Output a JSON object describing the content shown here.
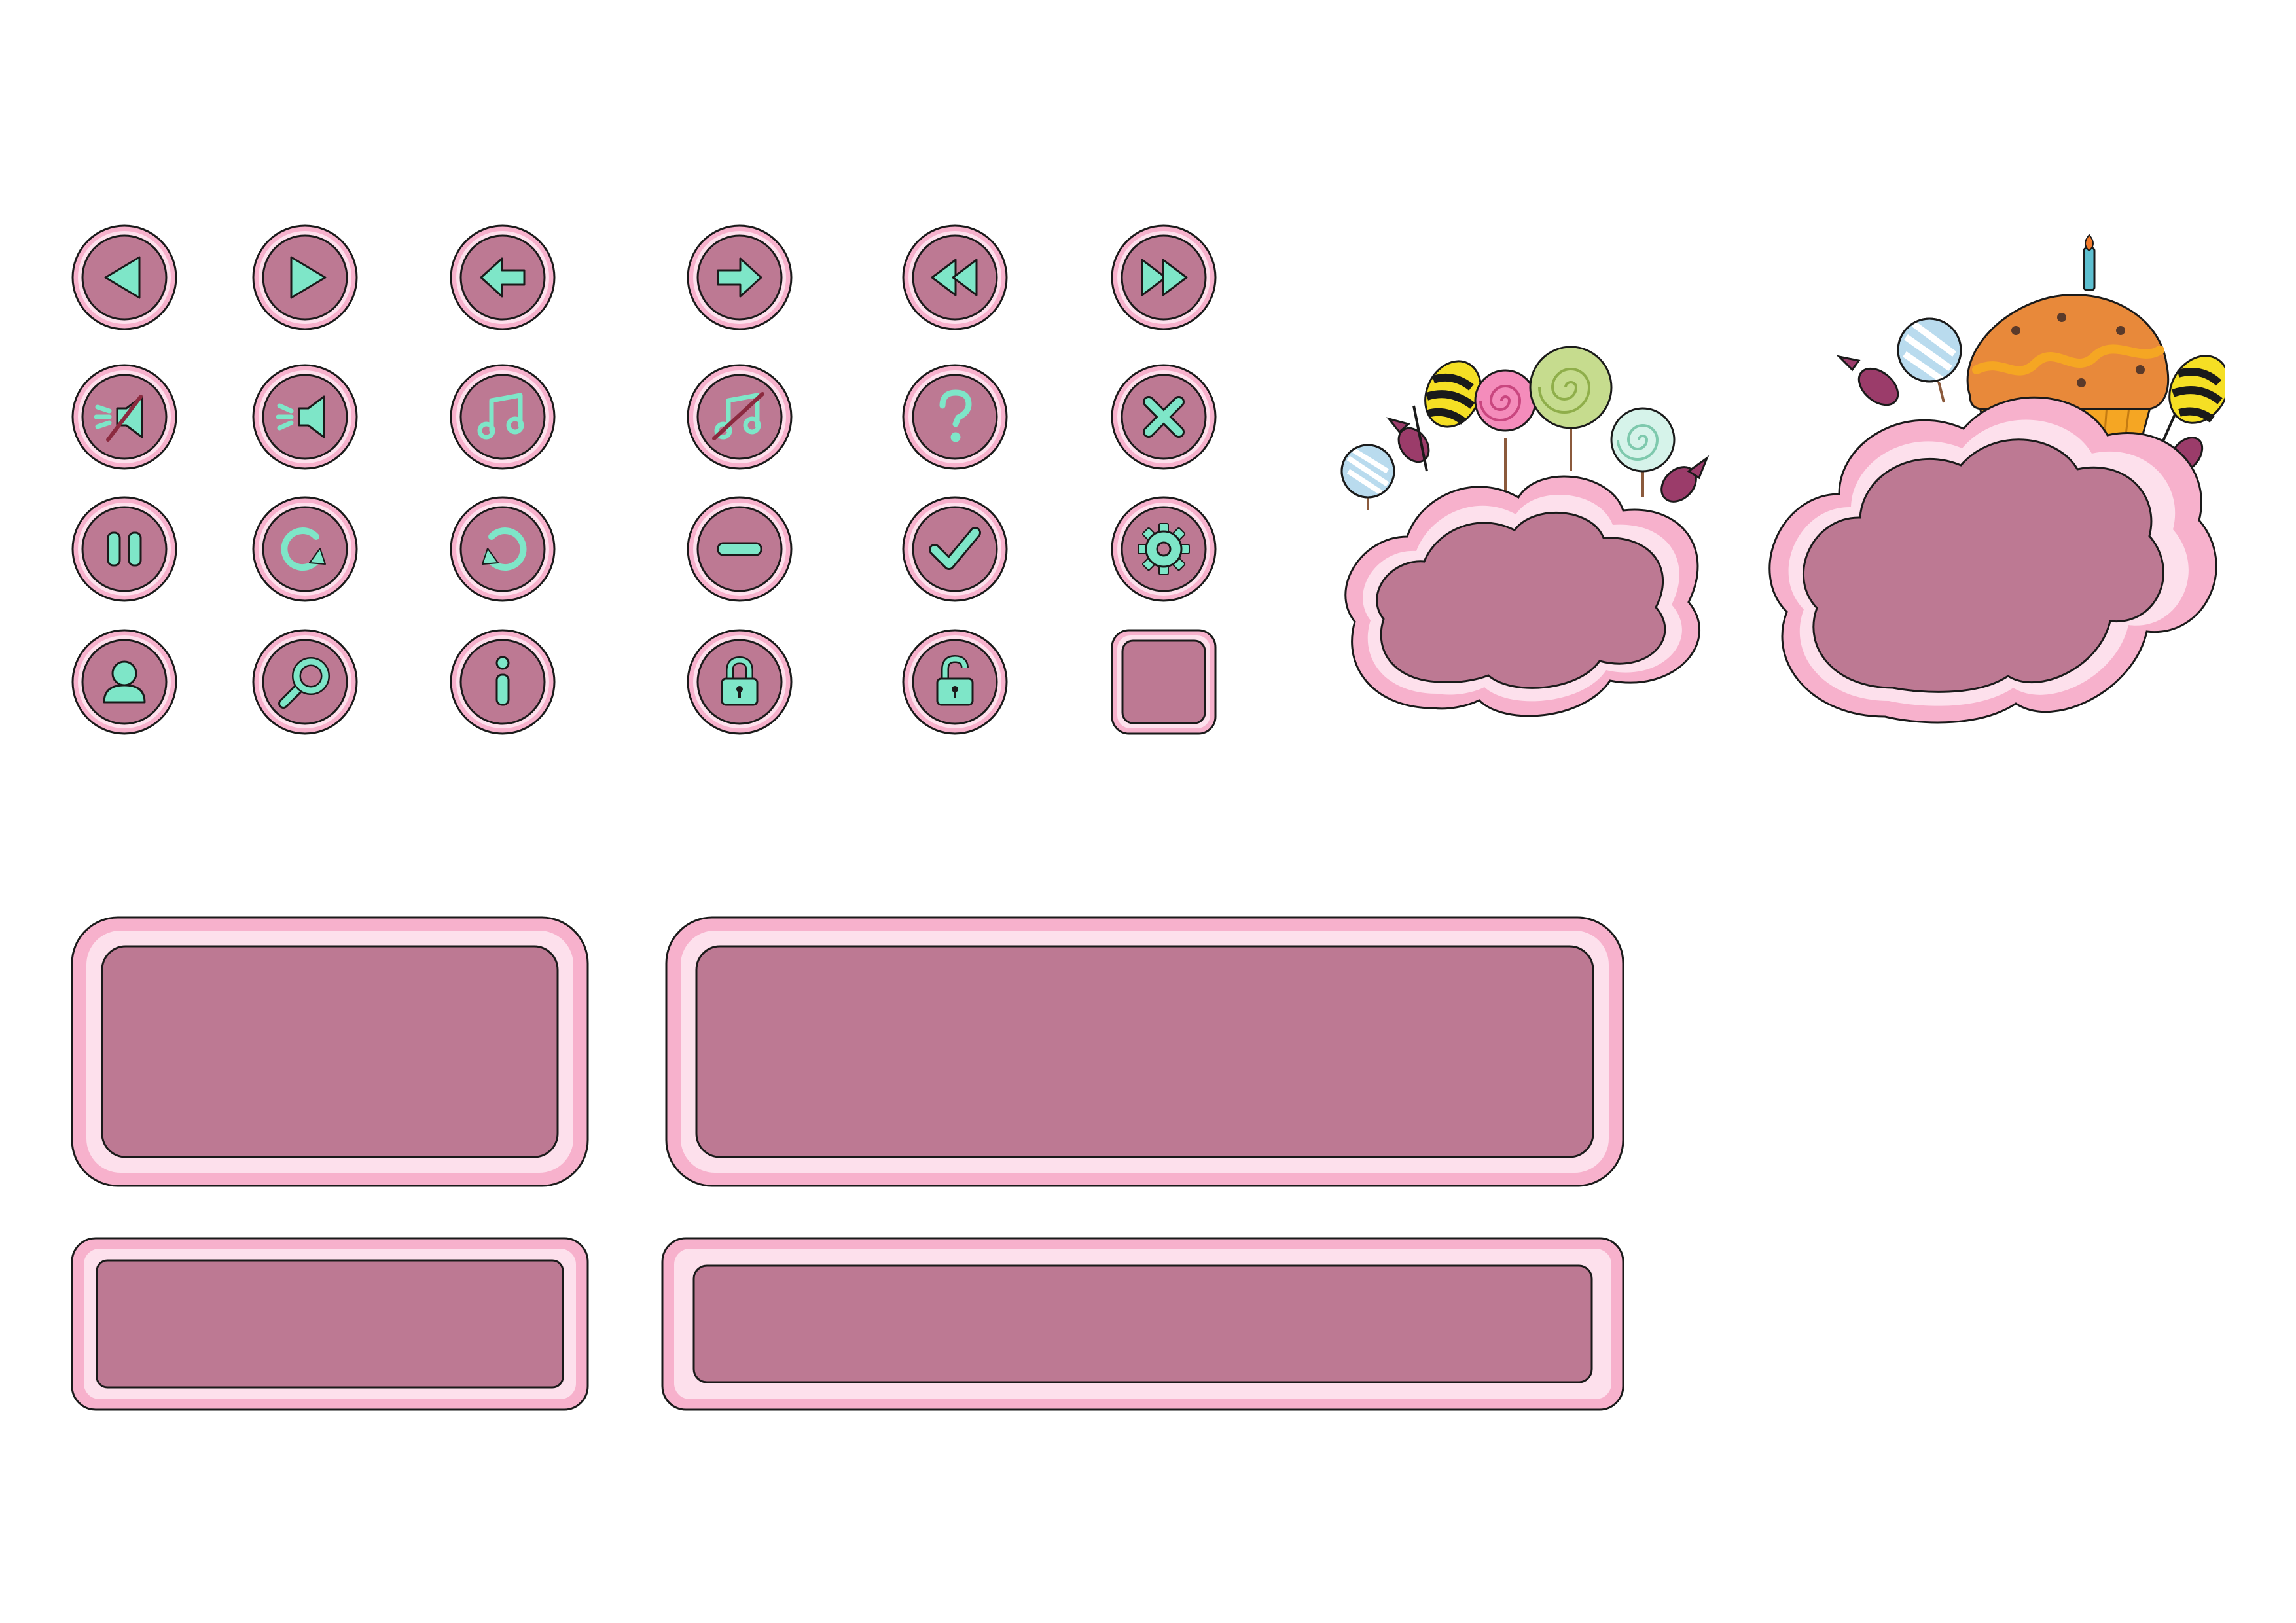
{
  "kit": {
    "theme": "candy",
    "colors": {
      "outline": "#1a1a1a",
      "rim_outer": "#f7b1cc",
      "rim_inner": "#fde0ec",
      "face": "#bd7993",
      "icon": "#7ee6c8",
      "mute_slash": "#8b2a3f",
      "lolly_pink": "#f48cbb",
      "lolly_green": "#c6dc8e",
      "lolly_mint": "#d6f3ea",
      "lolly_blue": "#b9dbee",
      "bee_yellow": "#f5df24",
      "wrapper": "#9b3c6a",
      "cupcake_wrapper": "#f5a623",
      "cupcake_top": "#e8893a",
      "candle": "#5dbfd0",
      "flame": "#f27b2c"
    }
  },
  "buttons": [
    {
      "id": "prev",
      "icon": "triangle-left-icon"
    },
    {
      "id": "play",
      "icon": "triangle-right-icon"
    },
    {
      "id": "back",
      "icon": "arrow-left-icon"
    },
    {
      "id": "forward",
      "icon": "arrow-right-icon"
    },
    {
      "id": "rewind",
      "icon": "rewind-icon"
    },
    {
      "id": "fast-forward",
      "icon": "fast-forward-icon"
    },
    {
      "id": "sound-off",
      "icon": "speaker-muted-icon"
    },
    {
      "id": "sound-on",
      "icon": "speaker-icon"
    },
    {
      "id": "music-on",
      "icon": "music-note-icon"
    },
    {
      "id": "music-off",
      "icon": "music-note-muted-icon"
    },
    {
      "id": "help",
      "icon": "question-mark-icon"
    },
    {
      "id": "close",
      "icon": "close-x-icon"
    },
    {
      "id": "pause",
      "icon": "pause-icon"
    },
    {
      "id": "restart",
      "icon": "rotate-right-icon"
    },
    {
      "id": "undo",
      "icon": "rotate-left-icon"
    },
    {
      "id": "minus",
      "icon": "minus-icon"
    },
    {
      "id": "confirm",
      "icon": "checkmark-icon"
    },
    {
      "id": "settings",
      "icon": "gear-icon"
    },
    {
      "id": "profile",
      "icon": "user-icon"
    },
    {
      "id": "search",
      "icon": "magnifier-icon"
    },
    {
      "id": "info",
      "icon": "info-icon"
    },
    {
      "id": "locked",
      "icon": "padlock-closed-icon"
    },
    {
      "id": "unlocked",
      "icon": "padlock-open-icon"
    },
    {
      "id": "blank",
      "icon": "blank-square-button"
    }
  ],
  "decorations": {
    "small_cloud": [
      "striped-lollipop",
      "bee-candy",
      "pink-lollipop",
      "green-lollipop",
      "mint-lollipop",
      "wrapped-candy"
    ],
    "large_cloud": [
      "cupcake-with-candle",
      "striped-lollipop",
      "bee-candy",
      "wrapped-candy"
    ]
  },
  "panels": [
    "panel-large-short",
    "panel-large-wide",
    "panel-bar-short",
    "panel-bar-wide"
  ]
}
